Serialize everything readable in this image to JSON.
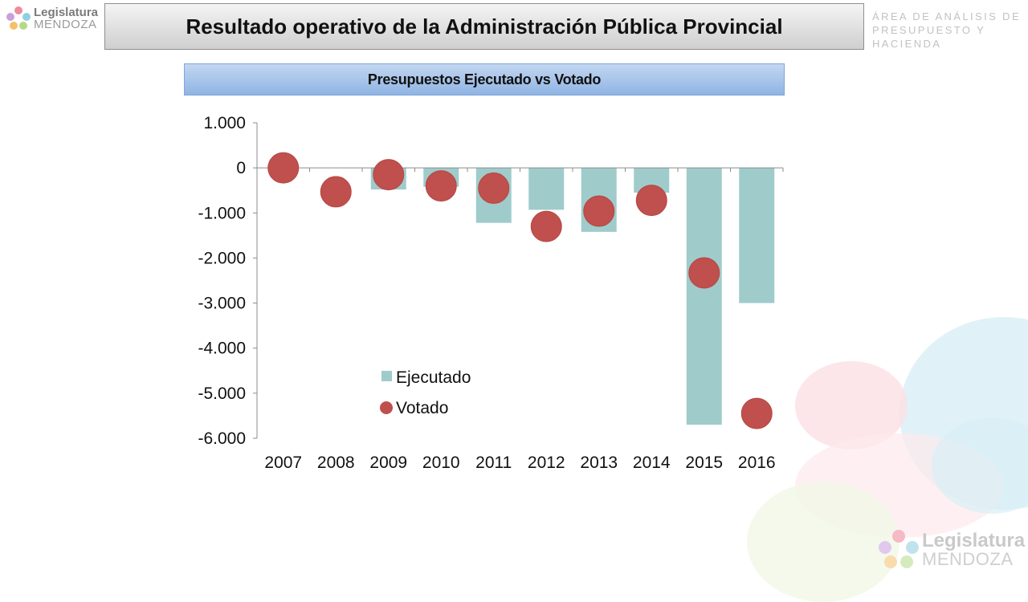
{
  "header": {
    "logo_line1": "Legislatura",
    "logo_line2": "MENDOZA",
    "title": "Resultado operativo de la Administración Pública Provincial",
    "area_line1": "ÁREA DE ANÁLISIS DE",
    "area_line2": "PRESUPUESTO Y HACIENDA"
  },
  "footer": {
    "logo_line1": "Legislatura",
    "logo_line2": "MENDOZA"
  },
  "colors": {
    "ejecutado": "#9fcbcb",
    "votado": "#c0504d"
  },
  "chart_data": {
    "type": "bar",
    "title": "Presupuestos Ejecutado vs Votado",
    "categories": [
      "2007",
      "2008",
      "2009",
      "2010",
      "2011",
      "2012",
      "2013",
      "2014",
      "2015",
      "2016"
    ],
    "series": [
      {
        "name": "Ejecutado",
        "type": "bar",
        "values": [
          0,
          0,
          -480,
          -420,
          -1220,
          -930,
          -1420,
          -550,
          -5700,
          -3000
        ]
      },
      {
        "name": "Votado",
        "type": "scatter",
        "values": [
          0,
          -530,
          -150,
          -400,
          -450,
          -1300,
          -960,
          -720,
          -2330,
          -5450
        ]
      }
    ],
    "yticks": [
      "1.000",
      "0",
      "-1.000",
      "-2.000",
      "-3.000",
      "-4.000",
      "-5.000",
      "-6.000"
    ],
    "ylim": [
      -6000,
      1000
    ],
    "legend": "lower-left inside",
    "grid": false
  }
}
